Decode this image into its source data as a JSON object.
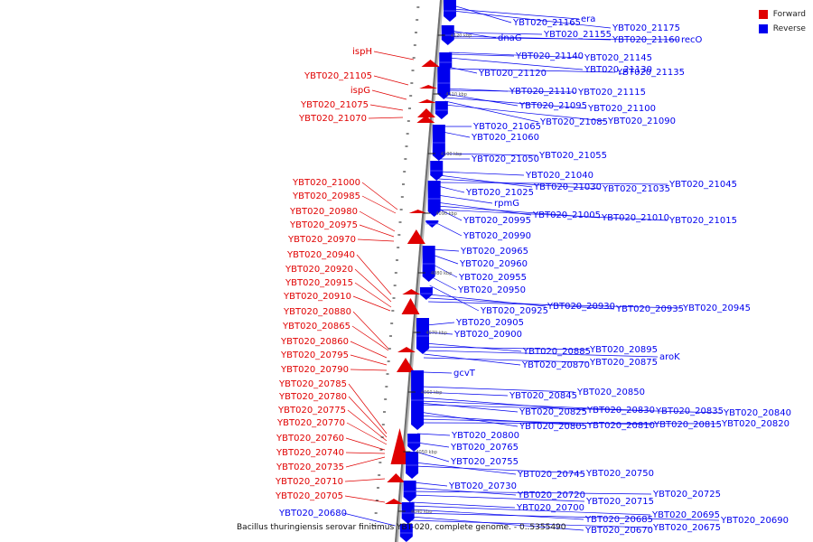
{
  "legend": {
    "items": [
      {
        "label": "Forward",
        "color": "#e00000"
      },
      {
        "label": "Reverse",
        "color": "#0000ee"
      }
    ]
  },
  "caption": "Bacillus thuringiensis serovar finitimus YBT-020, complete genome. - 0..5355490",
  "ticks": [
    "4120 kbp",
    "4110 kbp",
    "4100 kbp",
    "4090 kbp",
    "4080 kbp",
    "4070 kbp",
    "4060 kbp",
    "4050 kbp",
    "4040 kbp"
  ],
  "forward_labels": [
    "ispH",
    "YBT020_21105",
    "ispG",
    "YBT020_21075",
    "YBT020_21070",
    "YBT020_21000",
    "YBT020_20985",
    "YBT020_20980",
    "YBT020_20975",
    "YBT020_20970",
    "YBT020_20940",
    "YBT020_20920",
    "YBT020_20915",
    "YBT020_20910",
    "YBT020_20880",
    "YBT020_20865",
    "YBT020_20860",
    "YBT020_20795",
    "YBT020_20790",
    "YBT020_20785",
    "YBT020_20780",
    "YBT020_20775",
    "YBT020_20770",
    "YBT020_20760",
    "YBT020_20740",
    "YBT020_20735",
    "YBT020_20710",
    "YBT020_20705"
  ],
  "reverse_labels": [
    "YBT020_21165",
    "era",
    "YBT020_21175",
    "dnaG",
    "YBT020_21155",
    "YBT020_21160",
    "recO",
    "YBT020_21145",
    "YBT020_21140",
    "YBT020_21130",
    "YBT020_21120",
    "YBT020_21135",
    "YBT020_21110",
    "YBT020_21115",
    "YBT020_21095",
    "YBT020_21100",
    "YBT020_21085",
    "YBT020_21090",
    "YBT020_21065",
    "YBT020_21060",
    "YBT020_21055",
    "YBT020_21050",
    "YBT020_21040",
    "YBT020_21030",
    "YBT020_21035",
    "YBT020_21045",
    "YBT020_21025",
    "rpmG",
    "YBT020_21005",
    "YBT020_21010",
    "YBT020_21015",
    "YBT020_20995",
    "YBT020_20990",
    "YBT020_20965",
    "YBT020_20960",
    "YBT020_20955",
    "YBT020_20950",
    "YBT020_20930",
    "YBT020_20925",
    "YBT020_20935",
    "YBT020_20945",
    "YBT020_20905",
    "YBT020_20900",
    "YBT020_20885",
    "YBT020_20895",
    "aroK",
    "YBT020_20870",
    "YBT020_20875",
    "gcvT",
    "YBT020_20850",
    "YBT020_20845",
    "YBT020_20830",
    "YBT020_20835",
    "YBT020_20840",
    "YBT020_20825",
    "YBT020_20805",
    "YBT020_20810",
    "YBT020_20815",
    "YBT020_20820",
    "YBT020_20800",
    "YBT020_20765",
    "YBT020_20755",
    "YBT020_20745",
    "YBT020_20750",
    "YBT020_20730",
    "YBT020_20720",
    "YBT020_20725",
    "YBT020_20715",
    "YBT020_20700",
    "YBT020_20695",
    "YBT020_20685",
    "YBT020_20690",
    "YBT020_20670",
    "YBT020_20675",
    "YBT020_20680"
  ]
}
